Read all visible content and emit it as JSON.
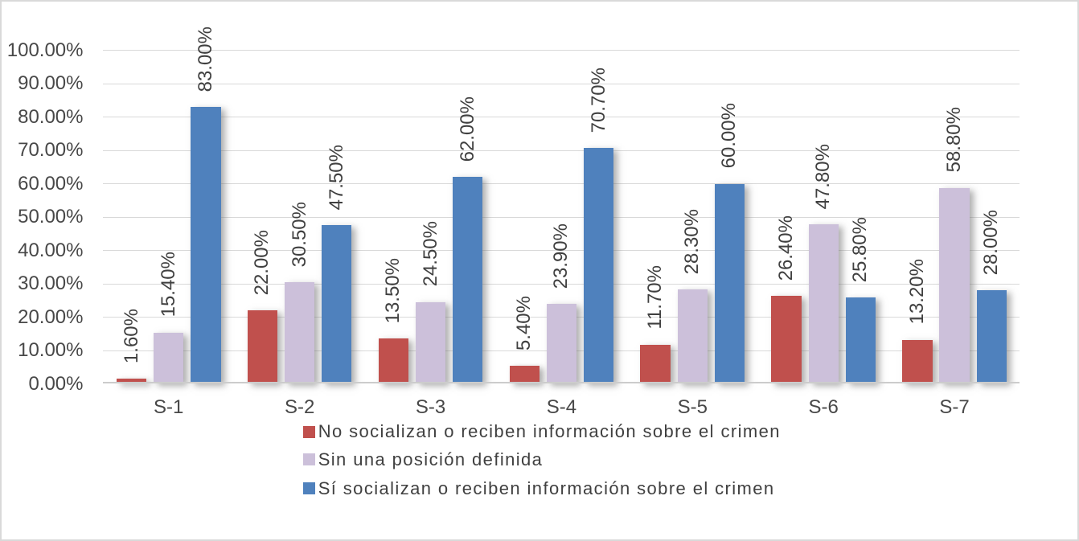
{
  "chart_data": {
    "type": "bar",
    "title": "",
    "xlabel": "",
    "ylabel": "",
    "categories": [
      "S-1",
      "S-2",
      "S-3",
      "S-4",
      "S-5",
      "S-6",
      "S-7"
    ],
    "series": [
      {
        "name": "No socializan o reciben información sobre el crimen",
        "color": "#c0504d",
        "values": [
          1.6,
          22.0,
          13.5,
          5.4,
          11.7,
          26.4,
          13.2
        ],
        "data_labels": [
          "1.60%",
          "22.00%",
          "13.50%",
          "5.40%",
          "11.70%",
          "26.40%",
          "13.20%"
        ]
      },
      {
        "name": "Sin una posición definida",
        "color": "#ccc0da",
        "values": [
          15.4,
          30.5,
          24.5,
          23.9,
          28.3,
          47.8,
          58.8
        ],
        "data_labels": [
          "15.40%",
          "30.50%",
          "24.50%",
          "23.90%",
          "28.30%",
          "47.80%",
          "58.80%"
        ]
      },
      {
        "name": "Sí socializan o reciben información sobre el crimen",
        "color": "#4f81bd",
        "values": [
          83.0,
          47.5,
          62.0,
          70.7,
          60.0,
          25.8,
          28.0
        ],
        "data_labels": [
          "83.00%",
          "47.50%",
          "62.00%",
          "70.70%",
          "60.00%",
          "25.80%",
          "28.00%"
        ]
      }
    ],
    "ylim": [
      0,
      100
    ],
    "y_tick_labels": [
      "0.00%",
      "10.00%",
      "20.00%",
      "30.00%",
      "40.00%",
      "50.00%",
      "60.00%",
      "70.00%",
      "80.00%",
      "90.00%",
      "100.00%"
    ],
    "grid": "horizontal",
    "legend_position": "bottom"
  },
  "colors": {
    "background": "#ffffff",
    "border": "#d9d9d9",
    "gridline": "#d9d9d9",
    "axis_line": "#cccccc",
    "tick_text": "#484848",
    "label_text": "#404040"
  }
}
